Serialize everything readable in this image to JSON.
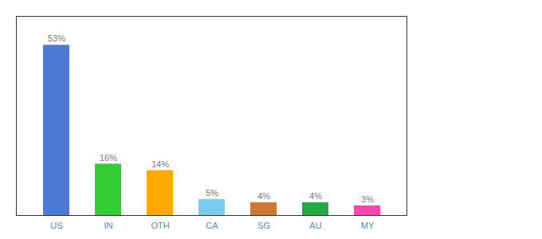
{
  "chart_data": {
    "type": "bar",
    "categories": [
      "US",
      "IN",
      "OTH",
      "CA",
      "SG",
      "AU",
      "MY"
    ],
    "values": [
      53,
      16,
      14,
      5,
      4,
      4,
      3
    ],
    "value_labels": [
      "53%",
      "16%",
      "14%",
      "5%",
      "4%",
      "4%",
      "3%"
    ],
    "colors": [
      "#4d7bd4",
      "#33cc33",
      "#ffaa00",
      "#77ccee",
      "#cc7733",
      "#22aa44",
      "#ff44aa"
    ],
    "ylim": [
      0,
      62
    ],
    "data_labels": true,
    "tick_labels": "x",
    "grid": false
  }
}
